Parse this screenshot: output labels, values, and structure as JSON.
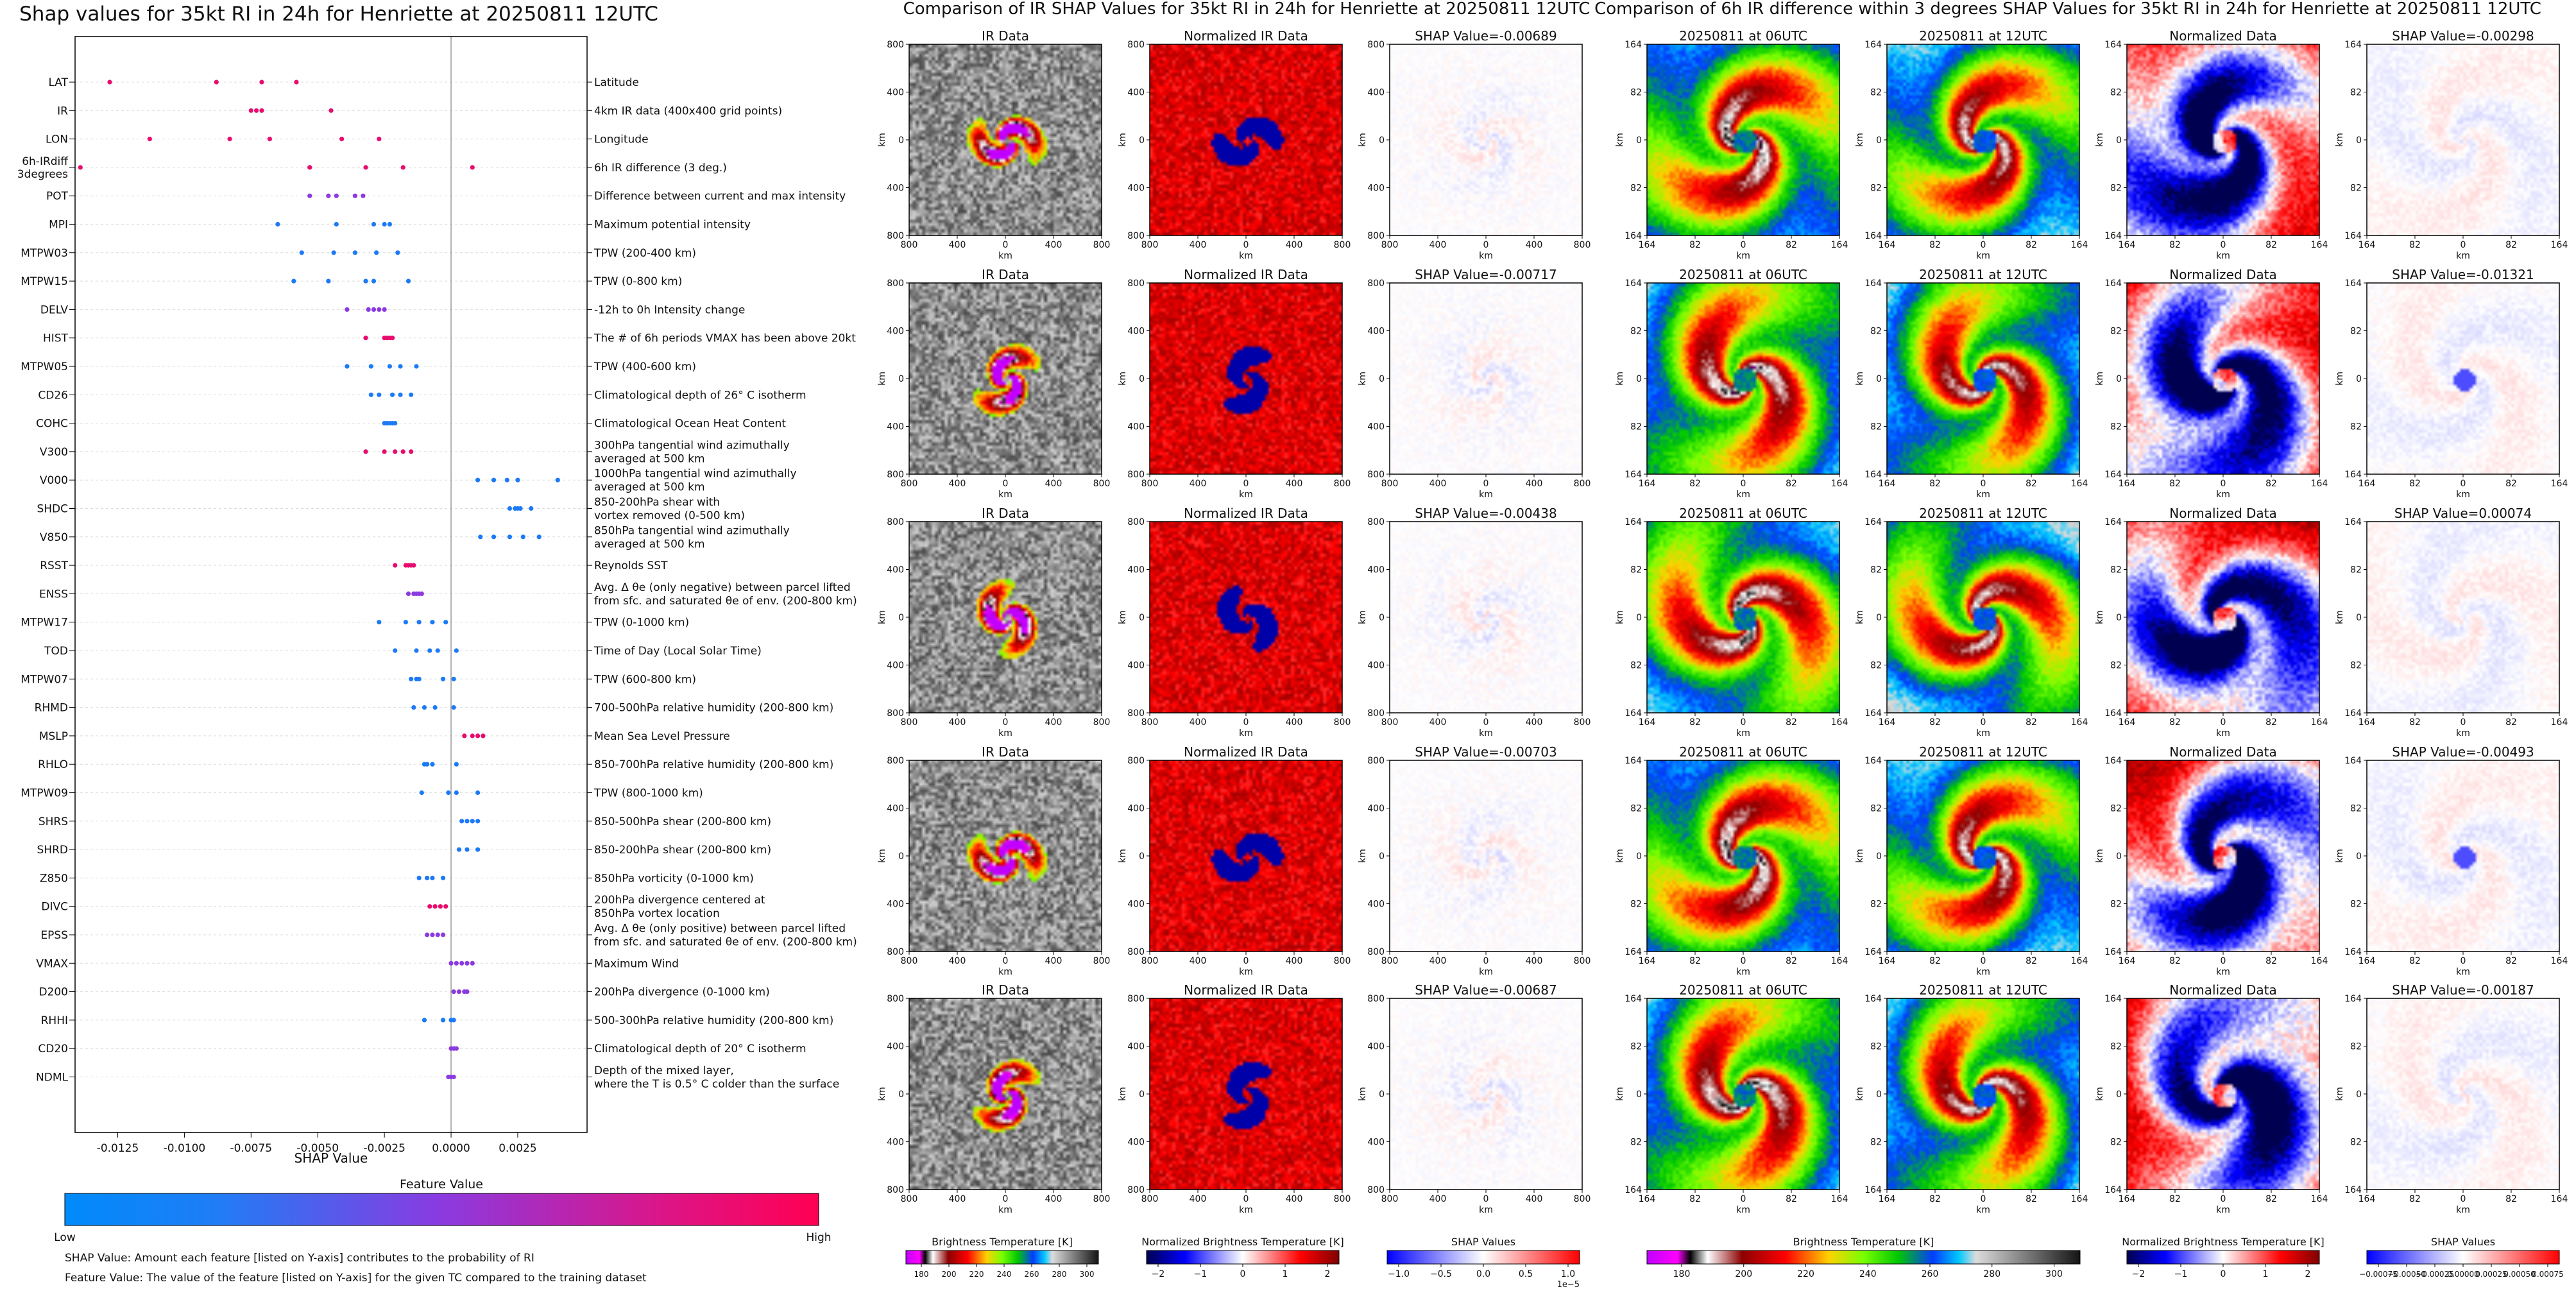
{
  "chart_data": [
    {
      "type": "scatter",
      "title": "Shap values for 35kt RI in 24h for Henriette at 20250811 12UTC",
      "xlabel": "SHAP Value",
      "xlim": [
        -0.0141,
        0.0051
      ],
      "xticks": [
        -0.0125,
        -0.01,
        -0.0075,
        -0.005,
        -0.0025,
        0.0,
        0.0025
      ],
      "xtick_labels": [
        "-0.0125",
        "-0.0100",
        "-0.0075",
        "-0.0050",
        "-0.0025",
        "0.0000",
        "0.0025"
      ],
      "colorbar": {
        "title": "Feature Value",
        "low_label": "Low",
        "high_label": "High",
        "low_color": "#008afb",
        "mid_color": "#8b3ae0",
        "high_color": "#ff0052"
      },
      "notes": [
        "SHAP Value: Amount each feature [listed on Y-axis] contributes to the probability of RI",
        "Feature Value: The value of the feature [listed on Y-axis] for the given TC compared to the training dataset"
      ],
      "features": [
        {
          "name": "LAT",
          "desc": [
            "Latitude"
          ],
          "shap": [
            -0.0128,
            -0.0088,
            -0.0071,
            -0.0058
          ],
          "fv": [
            0.9,
            0.9,
            0.9,
            0.9
          ]
        },
        {
          "name": "IR",
          "desc": [
            "4km IR data (400x400 grid points)"
          ],
          "shap": [
            -0.0075,
            -0.0073,
            -0.0071,
            -0.0045
          ],
          "fv": [
            0.9,
            0.9,
            0.9,
            0.9
          ]
        },
        {
          "name": "LON",
          "desc": [
            "Longitude"
          ],
          "shap": [
            -0.0113,
            -0.0083,
            -0.0068,
            -0.0041,
            -0.0027
          ],
          "fv": [
            0.9,
            0.9,
            0.9,
            0.9,
            0.9
          ]
        },
        {
          "name": "6h-IRdiff 3degrees",
          "labels": [
            "6h-IRdiff",
            "3degrees"
          ],
          "desc": [
            "6h IR difference (3 deg.)"
          ],
          "shap": [
            -0.0139,
            -0.0053,
            -0.0032,
            -0.0018,
            0.0008
          ],
          "fv": [
            0.9,
            0.9,
            0.9,
            0.9,
            0.9
          ]
        },
        {
          "name": "POT",
          "desc": [
            "Difference between current and max intensity"
          ],
          "shap": [
            -0.0053,
            -0.0046,
            -0.0043,
            -0.0036,
            -0.0033
          ],
          "fv": [
            0.5,
            0.5,
            0.5,
            0.5,
            0.5
          ]
        },
        {
          "name": "MPI",
          "desc": [
            "Maximum potential intensity"
          ],
          "shap": [
            -0.0065,
            -0.0043,
            -0.0029,
            -0.0025,
            -0.0023
          ],
          "fv": [
            0.1,
            0.1,
            0.1,
            0.1,
            0.1
          ]
        },
        {
          "name": "MTPW03",
          "desc": [
            "TPW (200-400 km)"
          ],
          "shap": [
            -0.0056,
            -0.0044,
            -0.0036,
            -0.0028,
            -0.002
          ],
          "fv": [
            0.1,
            0.1,
            0.1,
            0.1,
            0.1
          ]
        },
        {
          "name": "MTPW15",
          "desc": [
            "TPW (0-800 km)"
          ],
          "shap": [
            -0.0059,
            -0.0046,
            -0.0032,
            -0.0029,
            -0.0016
          ],
          "fv": [
            0.1,
            0.1,
            0.1,
            0.1,
            0.1
          ]
        },
        {
          "name": "DELV",
          "desc": [
            "-12h to 0h Intensity change"
          ],
          "shap": [
            -0.0039,
            -0.0031,
            -0.0029,
            -0.0027,
            -0.0025
          ],
          "fv": [
            0.5,
            0.5,
            0.5,
            0.5,
            0.5
          ]
        },
        {
          "name": "HIST",
          "desc": [
            "The # of 6h periods VMAX has been above 20kt"
          ],
          "shap": [
            -0.0032,
            -0.0025,
            -0.0024,
            -0.0023,
            -0.0022
          ],
          "fv": [
            0.9,
            0.9,
            0.9,
            0.9,
            0.9
          ]
        },
        {
          "name": "MTPW05",
          "desc": [
            "TPW (400-600 km)"
          ],
          "shap": [
            -0.0039,
            -0.003,
            -0.0023,
            -0.0019,
            -0.0013
          ],
          "fv": [
            0.1,
            0.1,
            0.1,
            0.1,
            0.1
          ]
        },
        {
          "name": "CD26",
          "desc": [
            "Climatological depth of 26° C isotherm"
          ],
          "shap": [
            -0.003,
            -0.0027,
            -0.0022,
            -0.0019,
            -0.0015
          ],
          "fv": [
            0.1,
            0.1,
            0.1,
            0.1,
            0.1
          ]
        },
        {
          "name": "COHC",
          "desc": [
            "Climatological Ocean Heat Content"
          ],
          "shap": [
            -0.0025,
            -0.0024,
            -0.0023,
            -0.0022,
            -0.0021
          ],
          "fv": [
            0.1,
            0.1,
            0.1,
            0.1,
            0.1
          ]
        },
        {
          "name": "V300",
          "desc": [
            "300hPa tangential wind azimuthally",
            "averaged at 500 km"
          ],
          "shap": [
            -0.0032,
            -0.0025,
            -0.0021,
            -0.0018,
            -0.0015
          ],
          "fv": [
            0.9,
            0.9,
            0.9,
            0.9,
            0.9
          ]
        },
        {
          "name": "V000",
          "desc": [
            "1000hPa tangential wind azimuthally",
            "averaged at 500 km"
          ],
          "shap": [
            0.001,
            0.0016,
            0.0021,
            0.0025,
            0.004
          ],
          "fv": [
            0.1,
            0.1,
            0.1,
            0.1,
            0.1
          ]
        },
        {
          "name": "SHDC",
          "desc": [
            "850-200hPa shear with",
            "vortex removed (0-500 km)"
          ],
          "shap": [
            0.0022,
            0.0024,
            0.0025,
            0.0026,
            0.003
          ],
          "fv": [
            0.1,
            0.1,
            0.1,
            0.1,
            0.1
          ]
        },
        {
          "name": "V850",
          "desc": [
            "850hPa tangential wind azimuthally",
            "averaged at 500 km"
          ],
          "shap": [
            0.0011,
            0.0016,
            0.0022,
            0.0027,
            0.0033
          ],
          "fv": [
            0.1,
            0.1,
            0.1,
            0.1,
            0.1
          ]
        },
        {
          "name": "RSST",
          "desc": [
            "Reynolds SST"
          ],
          "shap": [
            -0.0021,
            -0.0017,
            -0.0016,
            -0.0015,
            -0.0014
          ],
          "fv": [
            0.9,
            0.9,
            0.9,
            0.9,
            0.9
          ]
        },
        {
          "name": "ENSS",
          "desc": [
            "Avg. Δ θe (only negative) between parcel lifted",
            "from sfc. and saturated θe of env. (200-800 km)"
          ],
          "shap": [
            -0.0016,
            -0.0014,
            -0.0013,
            -0.0012,
            -0.0011
          ],
          "fv": [
            0.5,
            0.5,
            0.5,
            0.5,
            0.5
          ]
        },
        {
          "name": "MTPW17",
          "desc": [
            "TPW (0-1000 km)"
          ],
          "shap": [
            -0.0027,
            -0.0017,
            -0.0012,
            -0.0007,
            -0.0002
          ],
          "fv": [
            0.1,
            0.1,
            0.1,
            0.1,
            0.1
          ]
        },
        {
          "name": "TOD",
          "desc": [
            "Time of Day (Local Solar Time)"
          ],
          "shap": [
            -0.0021,
            -0.0013,
            -0.0008,
            -0.0005,
            0.0002
          ],
          "fv": [
            0.1,
            0.1,
            0.1,
            0.1,
            0.1
          ]
        },
        {
          "name": "MTPW07",
          "desc": [
            "TPW (600-800 km)"
          ],
          "shap": [
            -0.0015,
            -0.0013,
            -0.0012,
            -0.0003,
            0.0001
          ],
          "fv": [
            0.1,
            0.1,
            0.1,
            0.1,
            0.1
          ]
        },
        {
          "name": "RHMD",
          "desc": [
            "700-500hPa relative humidity (200-800 km)"
          ],
          "shap": [
            -0.0014,
            -0.001,
            -0.0006,
            0.0001
          ],
          "fv": [
            0.1,
            0.1,
            0.1,
            0.1
          ]
        },
        {
          "name": "MSLP",
          "desc": [
            "Mean Sea Level Pressure"
          ],
          "shap": [
            0.0005,
            0.0008,
            0.001,
            0.0012
          ],
          "fv": [
            0.9,
            0.9,
            0.9,
            0.9
          ]
        },
        {
          "name": "RHLO",
          "desc": [
            "850-700hPa relative humidity (200-800 km)"
          ],
          "shap": [
            -0.001,
            -0.0009,
            -0.0007,
            0.0002
          ],
          "fv": [
            0.1,
            0.1,
            0.1,
            0.1
          ]
        },
        {
          "name": "MTPW09",
          "desc": [
            "TPW (800-1000 km)"
          ],
          "shap": [
            -0.0011,
            -0.0001,
            0.0002,
            0.001
          ],
          "fv": [
            0.1,
            0.1,
            0.1,
            0.1
          ]
        },
        {
          "name": "SHRS",
          "desc": [
            "850-500hPa shear (200-800 km)"
          ],
          "shap": [
            0.0004,
            0.0006,
            0.0008,
            0.001
          ],
          "fv": [
            0.1,
            0.1,
            0.1,
            0.1
          ]
        },
        {
          "name": "SHRD",
          "desc": [
            "850-200hPa shear (200-800 km)"
          ],
          "shap": [
            0.0003,
            0.0006,
            0.001
          ],
          "fv": [
            0.1,
            0.1,
            0.1
          ]
        },
        {
          "name": "Z850",
          "desc": [
            "850hPa vorticity (0-1000 km)"
          ],
          "shap": [
            -0.0012,
            -0.0009,
            -0.0007,
            -0.0003
          ],
          "fv": [
            0.1,
            0.1,
            0.1,
            0.1
          ]
        },
        {
          "name": "DIVC",
          "desc": [
            "200hPa divergence centered at",
            "850hPa vortex location"
          ],
          "shap": [
            -0.0008,
            -0.0006,
            -0.0004,
            -0.0002
          ],
          "fv": [
            0.9,
            0.9,
            0.9,
            0.9
          ]
        },
        {
          "name": "EPSS",
          "desc": [
            "Avg. Δ θe (only positive) between parcel lifted",
            "from sfc. and saturated θe of env. (200-800 km)"
          ],
          "shap": [
            -0.0009,
            -0.0007,
            -0.0005,
            -0.0003
          ],
          "fv": [
            0.5,
            0.5,
            0.5,
            0.5
          ]
        },
        {
          "name": "VMAX",
          "desc": [
            "Maximum Wind"
          ],
          "shap": [
            0.0,
            0.0002,
            0.0004,
            0.0006,
            0.0008
          ],
          "fv": [
            0.5,
            0.5,
            0.5,
            0.5,
            0.5
          ]
        },
        {
          "name": "D200",
          "desc": [
            "200hPa divergence (0-1000 km)"
          ],
          "shap": [
            0.0001,
            0.0003,
            0.0005,
            0.0006
          ],
          "fv": [
            0.5,
            0.5,
            0.5,
            0.5
          ]
        },
        {
          "name": "RHHI",
          "desc": [
            "500-300hPa relative humidity (200-800 km)"
          ],
          "shap": [
            -0.001,
            -0.0003,
            0.0,
            0.0001
          ],
          "fv": [
            0.1,
            0.1,
            0.1,
            0.1
          ]
        },
        {
          "name": "CD20",
          "desc": [
            "Climatological depth of 20° C isotherm"
          ],
          "shap": [
            0.0,
            0.0001,
            0.0002
          ],
          "fv": [
            0.5,
            0.5,
            0.5
          ]
        },
        {
          "name": "NDML",
          "desc": [
            "Depth of the mixed layer,",
            "where the T is 0.5° C colder than the surface"
          ],
          "shap": [
            -0.0001,
            0.0,
            0.0001
          ],
          "fv": [
            0.5,
            0.5,
            0.5
          ]
        }
      ]
    },
    {
      "type": "heatmap",
      "title": "Comparison of IR SHAP Values for 35kt RI in 24h for Henriette at 20250811 12UTC",
      "axis_label": "km",
      "tick_labels": [
        "800",
        "400",
        "0",
        "400",
        "800"
      ],
      "column_titles": [
        "IR Data",
        "Normalized IR Data"
      ],
      "shap_titles": [
        "SHAP Value=-0.00689",
        "SHAP Value=-0.00717",
        "SHAP Value=-0.00438",
        "SHAP Value=-0.00703",
        "SHAP Value=-0.00687"
      ],
      "colorbars": [
        {
          "label": "Brightness Temperature [K]",
          "ticks": [
            "180",
            "200",
            "220",
            "240",
            "260",
            "280",
            "300"
          ]
        },
        {
          "label": "Normalized Brightness Temperature [K]",
          "ticks": [
            "−2",
            "−1",
            "0",
            "1",
            "2"
          ]
        },
        {
          "label": "SHAP Values",
          "ticks": [
            "−1.0",
            "−0.5",
            "0.0",
            "0.5",
            "1.0"
          ],
          "offset": "1e−5"
        }
      ]
    },
    {
      "type": "heatmap",
      "title": "Comparison of 6h IR difference within 3 degrees SHAP Values for 35kt RI in 24h for Henriette at 20250811 12UTC",
      "axis_label": "km",
      "tick_labels": [
        "164",
        "82",
        "0",
        "82",
        "164"
      ],
      "column_titles": [
        "20250811 at 06UTC",
        "20250811 at 12UTC",
        "Normalized Data"
      ],
      "shap_titles": [
        "SHAP Value=-0.00298",
        "SHAP Value=-0.01321",
        "SHAP Value=0.00074",
        "SHAP Value=-0.00493",
        "SHAP Value=-0.00187"
      ],
      "colorbars": [
        {
          "label": "Brightness Temperature [K]",
          "ticks": [
            "180",
            "200",
            "220",
            "240",
            "260",
            "280",
            "300"
          ]
        },
        {
          "label": "Normalized Brightness Temperature [K]",
          "ticks": [
            "−2",
            "−1",
            "0",
            "1",
            "2"
          ]
        },
        {
          "label": "SHAP Values",
          "ticks": [
            "−0.00075",
            "−0.00050",
            "−0.00025",
            "0.00000",
            "0.00025",
            "0.00050",
            "0.00075"
          ]
        }
      ]
    }
  ]
}
